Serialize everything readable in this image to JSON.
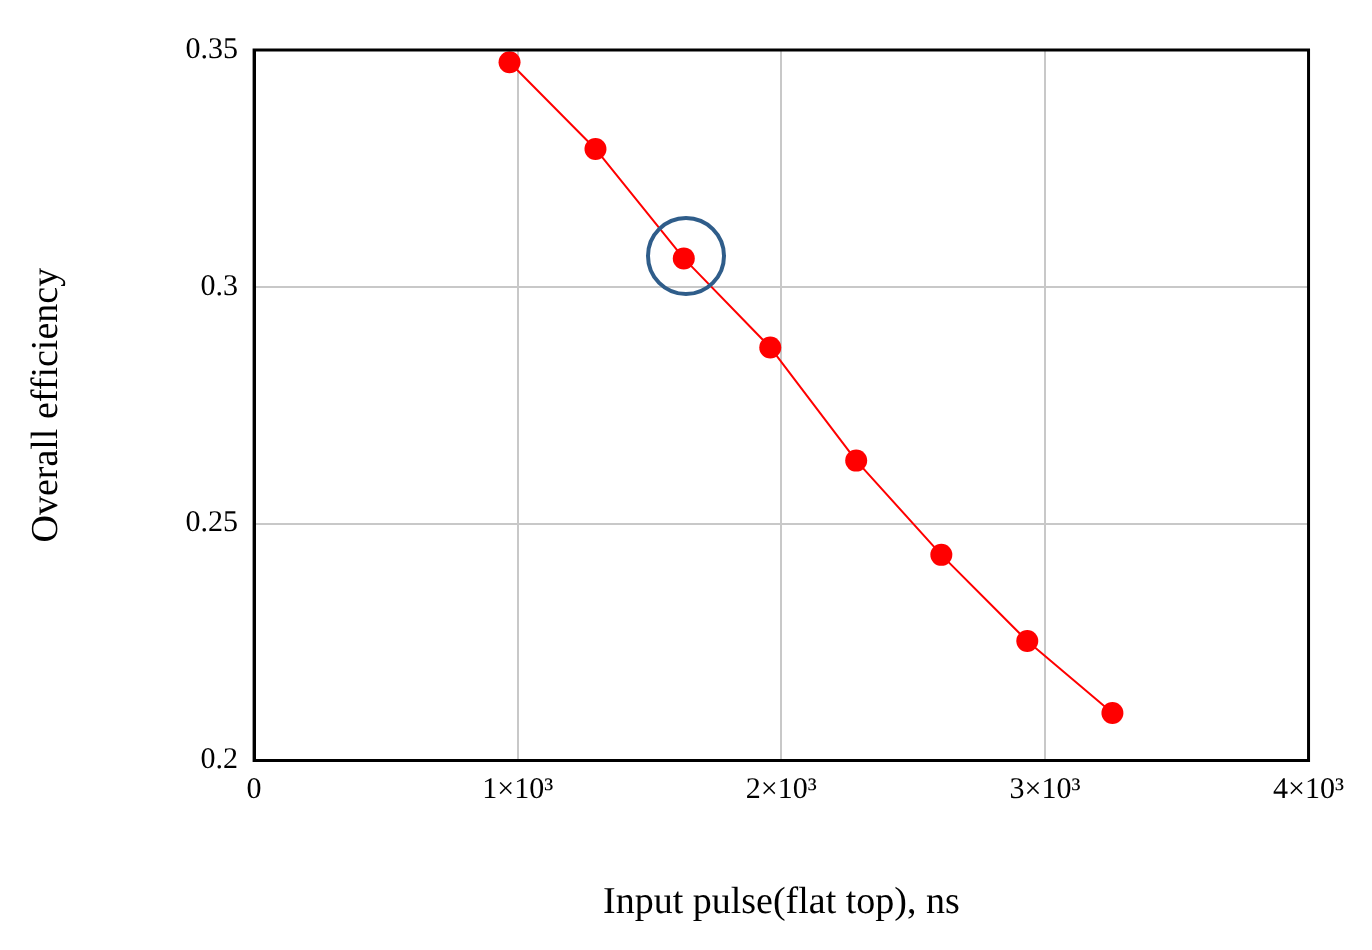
{
  "chart_data": {
    "type": "line",
    "xlabel": "Input pulse(flat top), ns",
    "ylabel": "Overall efficiency",
    "x": [
      969,
      1295,
      1630,
      1958,
      2284,
      2607,
      2933,
      3256
    ],
    "series": [
      {
        "color": "#ff0000",
        "values": [
          0.3474,
          0.3291,
          0.306,
          0.2872,
          0.2633,
          0.2434,
          0.2252,
          0.21
        ]
      }
    ],
    "xlim": [
      0,
      4000
    ],
    "xticks": [
      0,
      {
        "value": 1000,
        "label": "1×10³"
      },
      {
        "value": 2000,
        "label": "2×10³"
      },
      {
        "value": 3000,
        "label": "3×10³"
      },
      {
        "value": 4000,
        "label": "4×10³"
      }
    ],
    "ylim": [
      0.2,
      0.35
    ],
    "yticks": [
      0.2,
      0.25,
      0.3,
      0.35
    ],
    "grid": true,
    "marker": "circle",
    "line_style": "solid",
    "legend": false
  }
}
